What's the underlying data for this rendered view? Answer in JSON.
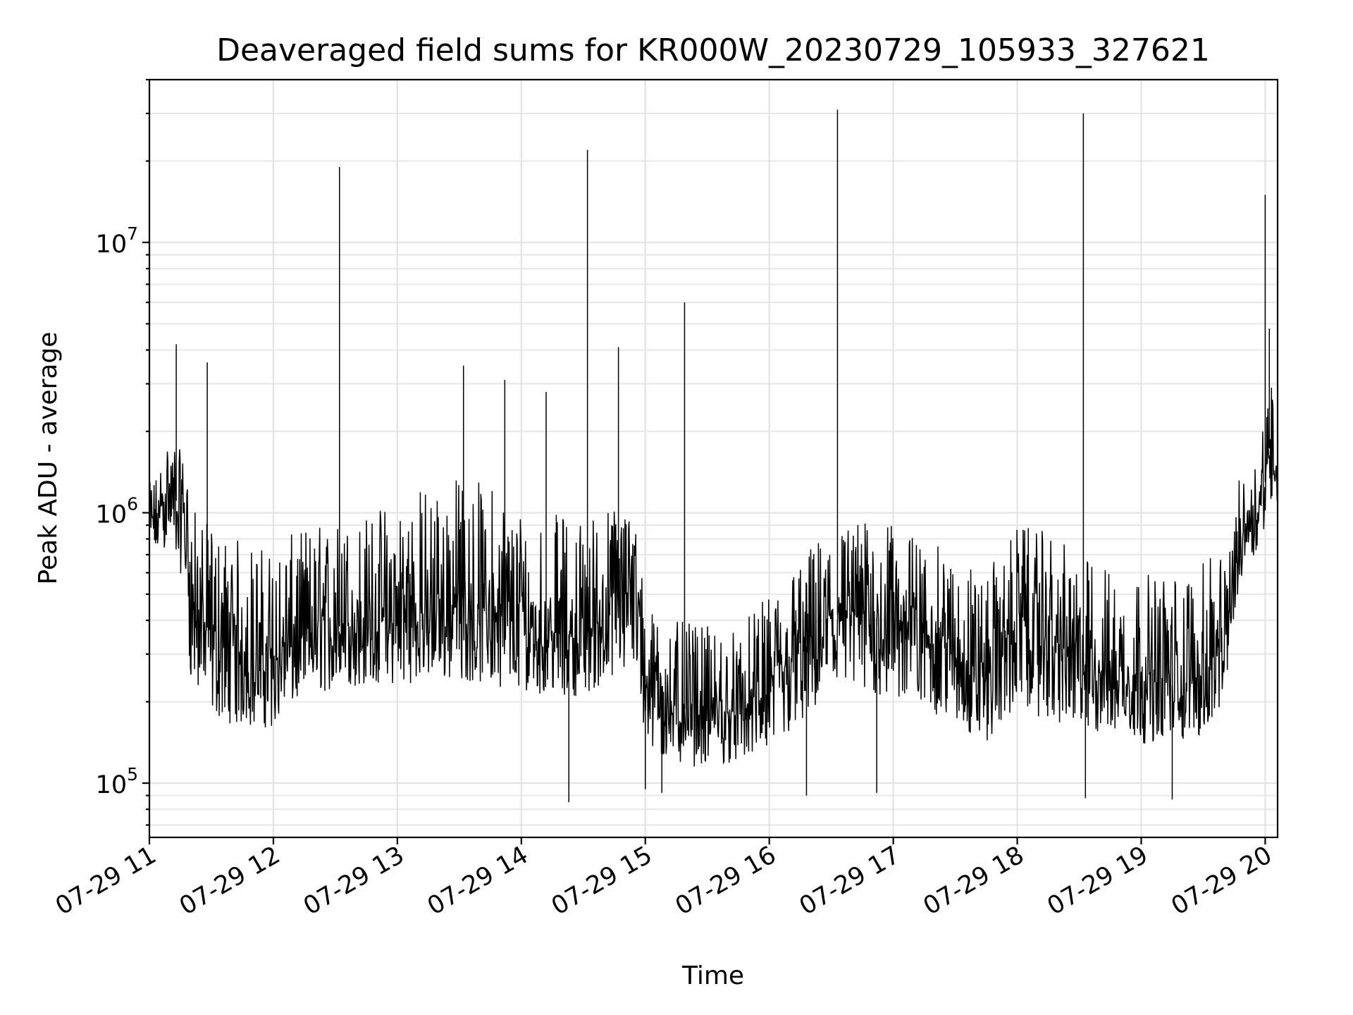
{
  "chart_data": {
    "type": "line",
    "title": "Deaveraged field sums for KR000W_20230729_105933_327621",
    "xlabel": "Time",
    "ylabel": "Peak ADU - average",
    "y_scale": "log",
    "ylim": [
      63000,
      40000000
    ],
    "xlim": [
      "2023-07-29 11:00",
      "2023-07-29 20:06"
    ],
    "grid": true,
    "line_color": "#000000",
    "x_tick_labels": [
      "07-29 11",
      "07-29 12",
      "07-29 13",
      "07-29 14",
      "07-29 15",
      "07-29 16",
      "07-29 17",
      "07-29 18",
      "07-29 19",
      "07-29 20"
    ],
    "y_tick_labels": [
      {
        "base": "10",
        "exp": "5",
        "value": 100000
      },
      {
        "base": "10",
        "exp": "6",
        "value": 1000000
      },
      {
        "base": "10",
        "exp": "7",
        "value": 10000000
      }
    ],
    "series": [
      {
        "x": [
          "2023-07-29 11:00",
          "2023-07-29 11:05",
          "2023-07-29 11:08",
          "2023-07-29 11:10",
          "2023-07-29 11:15",
          "2023-07-29 11:18",
          "2023-07-29 11:20",
          "2023-07-29 11:25",
          "2023-07-29 11:30",
          "2023-07-29 11:35",
          "2023-07-29 11:45",
          "2023-07-29 12:00",
          "2023-07-29 12:15",
          "2023-07-29 12:30",
          "2023-07-29 12:45",
          "2023-07-29 13:00",
          "2023-07-29 13:15",
          "2023-07-29 13:30",
          "2023-07-29 13:45",
          "2023-07-29 14:00",
          "2023-07-29 14:15",
          "2023-07-29 14:30",
          "2023-07-29 14:45",
          "2023-07-29 14:55",
          "2023-07-29 15:00",
          "2023-07-29 15:15",
          "2023-07-29 15:30",
          "2023-07-29 15:45",
          "2023-07-29 16:00",
          "2023-07-29 16:15",
          "2023-07-29 16:30",
          "2023-07-29 16:45",
          "2023-07-29 17:00",
          "2023-07-29 17:15",
          "2023-07-29 17:30",
          "2023-07-29 17:45",
          "2023-07-29 18:00",
          "2023-07-29 18:15",
          "2023-07-29 18:30",
          "2023-07-29 18:45",
          "2023-07-29 19:00",
          "2023-07-29 19:15",
          "2023-07-29 19:30",
          "2023-07-29 19:40",
          "2023-07-29 19:45",
          "2023-07-29 19:50",
          "2023-07-29 19:55",
          "2023-07-29 20:00",
          "2023-07-29 20:03",
          "2023-07-29 20:06"
        ],
        "values": [
          900000,
          1000000,
          1200000,
          1200000,
          1050000,
          900000,
          500000,
          420000,
          350000,
          320000,
          300000,
          280000,
          350000,
          380000,
          380000,
          400000,
          420000,
          450000,
          430000,
          380000,
          360000,
          350000,
          450000,
          650000,
          250000,
          190000,
          180000,
          180000,
          220000,
          300000,
          420000,
          420000,
          400000,
          380000,
          300000,
          260000,
          400000,
          350000,
          280000,
          260000,
          240000,
          230000,
          250000,
          300000,
          600000,
          900000,
          1000000,
          1300000,
          2000000,
          1500000
        ],
        "band_low": [
          650000,
          700000,
          750000,
          700000,
          600000,
          500000,
          230000,
          200000,
          180000,
          170000,
          160000,
          160000,
          210000,
          220000,
          230000,
          230000,
          240000,
          240000,
          230000,
          220000,
          210000,
          210000,
          240000,
          260000,
          130000,
          115000,
          115000,
          120000,
          130000,
          160000,
          200000,
          210000,
          200000,
          190000,
          160000,
          140000,
          190000,
          170000,
          150000,
          150000,
          140000,
          140000,
          150000,
          190000,
          420000,
          650000,
          700000,
          900000,
          1100000,
          1000000
        ],
        "band_high": [
          1300000,
          1500000,
          1800000,
          2000000,
          1700000,
          1500000,
          1100000,
          950000,
          900000,
          850000,
          800000,
          750000,
          900000,
          950000,
          1000000,
          1200000,
          1300000,
          1400000,
          1300000,
          1100000,
          1000000,
          1000000,
          1100000,
          1100000,
          450000,
          400000,
          380000,
          380000,
          500000,
          700000,
          900000,
          950000,
          900000,
          800000,
          700000,
          600000,
          900000,
          850000,
          700000,
          650000,
          600000,
          600000,
          650000,
          750000,
          1200000,
          1500000,
          1700000,
          2500000,
          4000000,
          3000000
        ],
        "spikes": [
          {
            "x": "2023-07-29 11:13",
            "value": 4200000
          },
          {
            "x": "2023-07-29 11:28",
            "value": 3600000
          },
          {
            "x": "2023-07-29 12:32",
            "value": 19000000
          },
          {
            "x": "2023-07-29 13:32",
            "value": 3500000
          },
          {
            "x": "2023-07-29 13:52",
            "value": 3100000
          },
          {
            "x": "2023-07-29 14:12",
            "value": 2800000
          },
          {
            "x": "2023-07-29 14:23",
            "value": 85000
          },
          {
            "x": "2023-07-29 14:32",
            "value": 22000000
          },
          {
            "x": "2023-07-29 14:47",
            "value": 4100000
          },
          {
            "x": "2023-07-29 15:19",
            "value": 6000000
          },
          {
            "x": "2023-07-29 16:33",
            "value": 31000000
          },
          {
            "x": "2023-07-29 16:18",
            "value": 90000
          },
          {
            "x": "2023-07-29 16:52",
            "value": 92000
          },
          {
            "x": "2023-07-29 18:32",
            "value": 30000000
          },
          {
            "x": "2023-07-29 18:33",
            "value": 88000
          },
          {
            "x": "2023-07-29 19:15",
            "value": 87000
          },
          {
            "x": "2023-07-29 20:00",
            "value": 15000000
          },
          {
            "x": "2023-07-29 20:02",
            "value": 4800000
          },
          {
            "x": "2023-07-29 15:00",
            "value": 95000
          },
          {
            "x": "2023-07-29 15:08",
            "value": 92000
          }
        ]
      }
    ]
  }
}
